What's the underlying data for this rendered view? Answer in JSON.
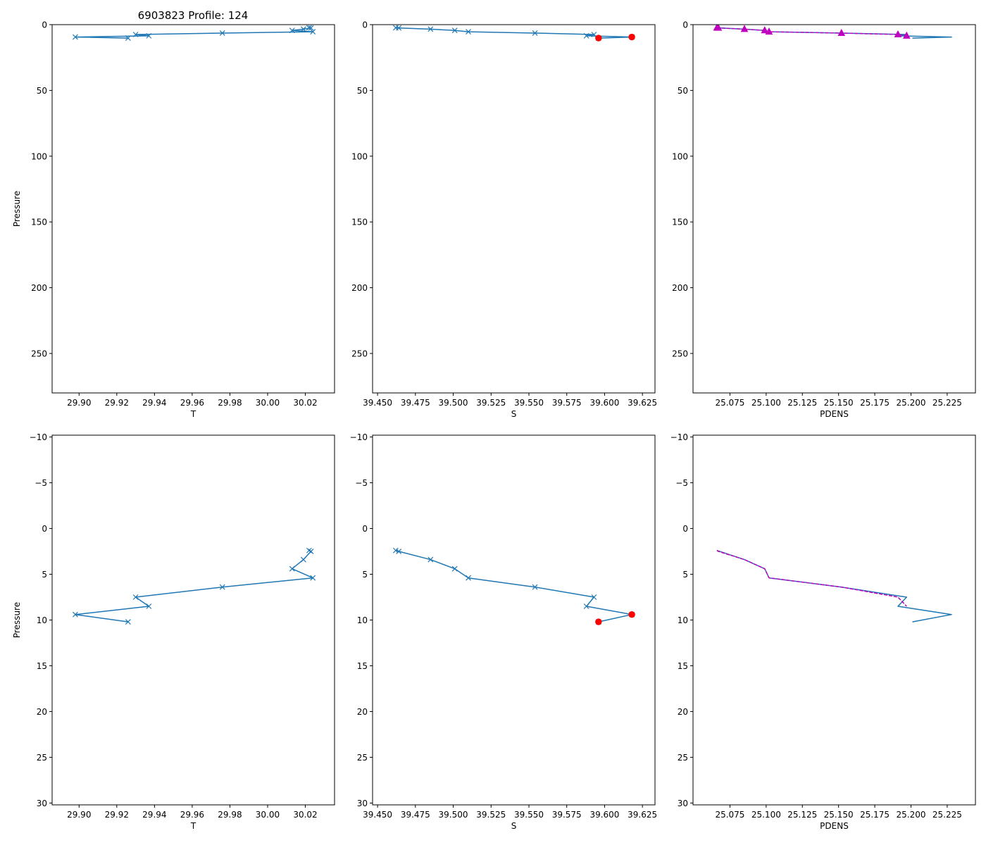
{
  "figure": {
    "title": "6903823 Profile: 124",
    "ylabel": "Pressure"
  },
  "colors": {
    "line": "#1f77b4",
    "flag": "#ff0000",
    "pdens_alt": "#bf00bf",
    "axis": "#000000"
  },
  "chart_data": [
    {
      "id": "t_full",
      "type": "line",
      "xlabel": "T",
      "xlim": [
        29.8857,
        30.0355
      ],
      "ylim": [
        280,
        0
      ],
      "ylabel": "Pressure",
      "xticks": [
        29.9,
        29.92,
        29.94,
        29.96,
        29.98,
        30.0,
        30.02
      ],
      "xtick_labels": [
        "29.90",
        "29.92",
        "29.94",
        "29.96",
        "29.98",
        "30.00",
        "30.02"
      ],
      "yticks": [
        0,
        50,
        100,
        150,
        200,
        250
      ],
      "ytick_labels": [
        "0",
        "50",
        "100",
        "150",
        "200",
        "250"
      ],
      "series": [
        {
          "name": "T",
          "marker": "x",
          "color": "line",
          "x": [
            30.022,
            30.023,
            30.019,
            30.013,
            30.024,
            29.976,
            29.93,
            29.937,
            29.898,
            29.926
          ],
          "y": [
            2.4,
            2.5,
            3.4,
            4.4,
            5.4,
            6.4,
            7.5,
            8.5,
            9.4,
            10.2
          ]
        }
      ],
      "flags": []
    },
    {
      "id": "s_full",
      "type": "line",
      "xlabel": "S",
      "xlim": [
        39.4467,
        39.6333
      ],
      "ylim": [
        280,
        0
      ],
      "ylabel": "",
      "xticks": [
        39.45,
        39.475,
        39.5,
        39.525,
        39.55,
        39.575,
        39.6,
        39.625
      ],
      "xtick_labels": [
        "39.450",
        "39.475",
        "39.500",
        "39.525",
        "39.550",
        "39.575",
        "39.600",
        "39.625"
      ],
      "yticks": [
        0,
        50,
        100,
        150,
        200,
        250
      ],
      "ytick_labels": [
        "0",
        "50",
        "100",
        "150",
        "200",
        "250"
      ],
      "series": [
        {
          "name": "S",
          "marker": "x",
          "color": "line",
          "x": [
            39.462,
            39.464,
            39.485,
            39.501,
            39.51,
            39.554,
            39.593,
            39.588,
            39.618,
            39.596
          ],
          "y": [
            2.4,
            2.5,
            3.4,
            4.4,
            5.4,
            6.4,
            7.5,
            8.5,
            9.4,
            10.2
          ]
        }
      ],
      "flags": [
        {
          "x": 39.618,
          "y": 9.4
        },
        {
          "x": 39.596,
          "y": 10.2
        }
      ]
    },
    {
      "id": "pdens_full",
      "type": "line",
      "xlabel": "PDENS",
      "xlim": [
        25.0495,
        25.2445
      ],
      "ylim": [
        280,
        0
      ],
      "ylabel": "",
      "xticks": [
        25.075,
        25.1,
        25.125,
        25.15,
        25.175,
        25.2,
        25.225
      ],
      "xtick_labels": [
        "25.075",
        "25.100",
        "25.125",
        "25.150",
        "25.175",
        "25.200",
        "25.225"
      ],
      "yticks": [
        0,
        50,
        100,
        150,
        200,
        250
      ],
      "ytick_labels": [
        "0",
        "50",
        "100",
        "150",
        "200",
        "250"
      ],
      "series": [
        {
          "name": "PDENS",
          "marker": "none",
          "color": "line",
          "x": [
            25.066,
            25.085,
            25.099,
            25.102,
            25.152,
            25.197,
            25.191,
            25.228,
            25.201
          ],
          "y": [
            2.4,
            3.4,
            4.4,
            5.4,
            6.4,
            7.5,
            8.5,
            9.4,
            10.2
          ]
        },
        {
          "name": "PDENS (sorted)",
          "marker": "triangle",
          "color": "pdens_alt",
          "dashed": true,
          "x": [
            25.066,
            25.067,
            25.085,
            25.099,
            25.102,
            25.152,
            25.191,
            25.197
          ],
          "y": [
            2.4,
            2.5,
            3.4,
            4.4,
            5.4,
            6.4,
            7.5,
            8.5
          ]
        }
      ],
      "flags": []
    },
    {
      "id": "t_zoom",
      "type": "line",
      "xlabel": "T",
      "xlim": [
        29.8857,
        30.0355
      ],
      "ylim": [
        30.2,
        -10.2
      ],
      "ylabel": "Pressure",
      "xticks": [
        29.9,
        29.92,
        29.94,
        29.96,
        29.98,
        30.0,
        30.02
      ],
      "xtick_labels": [
        "29.90",
        "29.92",
        "29.94",
        "29.96",
        "29.98",
        "30.00",
        "30.02"
      ],
      "yticks": [
        -10,
        -5,
        0,
        5,
        10,
        15,
        20,
        25,
        30
      ],
      "ytick_labels": [
        "−10",
        "−5",
        "0",
        "5",
        "10",
        "15",
        "20",
        "25",
        "30"
      ],
      "series": [
        {
          "name": "T",
          "marker": "x",
          "color": "line",
          "x": [
            30.022,
            30.023,
            30.019,
            30.013,
            30.024,
            29.976,
            29.93,
            29.937,
            29.898,
            29.926
          ],
          "y": [
            2.4,
            2.5,
            3.4,
            4.4,
            5.4,
            6.4,
            7.5,
            8.5,
            9.4,
            10.2
          ]
        }
      ],
      "flags": []
    },
    {
      "id": "s_zoom",
      "type": "line",
      "xlabel": "S",
      "xlim": [
        39.4467,
        39.6333
      ],
      "ylim": [
        30.2,
        -10.2
      ],
      "ylabel": "",
      "xticks": [
        39.45,
        39.475,
        39.5,
        39.525,
        39.55,
        39.575,
        39.6,
        39.625
      ],
      "xtick_labels": [
        "39.450",
        "39.475",
        "39.500",
        "39.525",
        "39.550",
        "39.575",
        "39.600",
        "39.625"
      ],
      "yticks": [
        -10,
        -5,
        0,
        5,
        10,
        15,
        20,
        25,
        30
      ],
      "ytick_labels": [
        "−10",
        "−5",
        "0",
        "5",
        "10",
        "15",
        "20",
        "25",
        "30"
      ],
      "series": [
        {
          "name": "S",
          "marker": "x",
          "color": "line",
          "x": [
            39.462,
            39.464,
            39.485,
            39.501,
            39.51,
            39.554,
            39.593,
            39.588,
            39.618,
            39.596
          ],
          "y": [
            2.4,
            2.5,
            3.4,
            4.4,
            5.4,
            6.4,
            7.5,
            8.5,
            9.4,
            10.2
          ]
        }
      ],
      "flags": [
        {
          "x": 39.618,
          "y": 9.4
        },
        {
          "x": 39.596,
          "y": 10.2
        }
      ]
    },
    {
      "id": "pdens_zoom",
      "type": "line",
      "xlabel": "PDENS",
      "xlim": [
        25.0495,
        25.2445
      ],
      "ylim": [
        30.2,
        -10.2
      ],
      "ylabel": "",
      "xticks": [
        25.075,
        25.1,
        25.125,
        25.15,
        25.175,
        25.2,
        25.225
      ],
      "xtick_labels": [
        "25.075",
        "25.100",
        "25.125",
        "25.150",
        "25.175",
        "25.200",
        "25.225"
      ],
      "yticks": [
        -10,
        -5,
        0,
        5,
        10,
        15,
        20,
        25,
        30
      ],
      "ytick_labels": [
        "−10",
        "−5",
        "0",
        "5",
        "10",
        "15",
        "20",
        "25",
        "30"
      ],
      "series": [
        {
          "name": "PDENS",
          "marker": "none",
          "color": "line",
          "x": [
            25.066,
            25.085,
            25.099,
            25.102,
            25.152,
            25.197,
            25.191,
            25.228,
            25.201
          ],
          "y": [
            2.4,
            3.4,
            4.4,
            5.4,
            6.4,
            7.5,
            8.5,
            9.4,
            10.2
          ]
        },
        {
          "name": "PDENS (sorted)",
          "marker": "none",
          "color": "pdens_alt",
          "dashed": true,
          "x": [
            25.066,
            25.067,
            25.085,
            25.099,
            25.102,
            25.152,
            25.191,
            25.197
          ],
          "y": [
            2.4,
            2.5,
            3.4,
            4.4,
            5.4,
            6.4,
            7.5,
            8.5
          ]
        }
      ],
      "flags": []
    }
  ]
}
